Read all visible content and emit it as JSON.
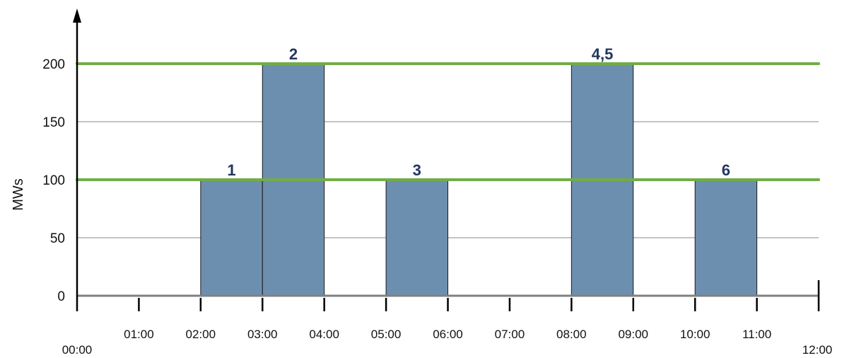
{
  "chart_data": {
    "type": "bar",
    "title": "",
    "xlabel": "",
    "ylabel": "MWs",
    "ylim": [
      0,
      200
    ],
    "yticks": [
      0,
      50,
      100,
      150,
      200
    ],
    "xlim": [
      "00:00",
      "12:00"
    ],
    "xticks": [
      "00:00",
      "01:00",
      "02:00",
      "03:00",
      "04:00",
      "05:00",
      "06:00",
      "07:00",
      "08:00",
      "09:00",
      "10:00",
      "11:00",
      "12:00"
    ],
    "grid": true,
    "bars": [
      {
        "label": "1",
        "start": "02:00",
        "end": "03:00",
        "value": 100
      },
      {
        "label": "2",
        "start": "03:00",
        "end": "04:00",
        "value": 200
      },
      {
        "label": "3",
        "start": "05:00",
        "end": "06:00",
        "value": 100
      },
      {
        "label": "4,5",
        "start": "08:00",
        "end": "09:00",
        "value": 200
      },
      {
        "label": "6",
        "start": "10:00",
        "end": "11:00",
        "value": 100
      }
    ],
    "reference_lines": [
      100,
      200
    ],
    "colors": {
      "bar_fill": "#6d8faf",
      "bar_stroke": "#1a1a1a",
      "reference_line": "#70ad47",
      "grid": "#b0b0b0",
      "bar_label": "#22375e"
    }
  }
}
